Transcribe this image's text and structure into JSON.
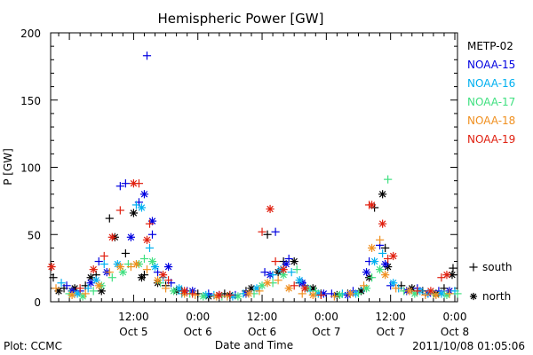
{
  "chart_data": {
    "type": "scatter",
    "title": "Hemispheric Power [GW]",
    "xlabel": "Date and Time",
    "ylabel": "P [GW]",
    "ylim": [
      0,
      200
    ],
    "xlim": [
      "2011-10-04T20:30",
      "2011-10-08T00:30"
    ],
    "yticks": [
      0,
      50,
      100,
      150,
      200
    ],
    "xticks": [
      {
        "time": "2011-10-05T12:00",
        "line1": "12:00",
        "line2": "Oct 5"
      },
      {
        "time": "2011-10-06T00:00",
        "line1": "0:00",
        "line2": "Oct 6"
      },
      {
        "time": "2011-10-06T12:00",
        "line1": "12:00",
        "line2": "Oct 6"
      },
      {
        "time": "2011-10-07T00:00",
        "line1": "0:00",
        "line2": "Oct 7"
      },
      {
        "time": "2011-10-07T12:00",
        "line1": "12:00",
        "line2": "Oct 7"
      },
      {
        "time": "2011-10-08T00:00",
        "line1": "0:00",
        "line2": "Oct 8"
      }
    ],
    "markers": {
      "south": {
        "symbol": "+",
        "label": "south"
      },
      "north": {
        "symbol": "*",
        "label": "north"
      }
    },
    "series": [
      {
        "name": "METP-02",
        "color": "#000000",
        "south": [
          [
            "2011-10-04T21:00",
            18
          ],
          [
            "2011-10-04T23:00",
            10
          ],
          [
            "2011-10-05T03:00",
            12
          ],
          [
            "2011-10-05T05:00",
            20
          ],
          [
            "2011-10-05T07:30",
            62
          ],
          [
            "2011-10-05T10:30",
            36
          ],
          [
            "2011-10-05T14:00",
            20
          ],
          [
            "2011-10-05T18:00",
            12
          ],
          [
            "2011-10-05T21:00",
            8
          ],
          [
            "2011-10-06T00:00",
            6
          ],
          [
            "2011-10-06T05:00",
            6
          ],
          [
            "2011-10-06T09:00",
            8
          ],
          [
            "2011-10-06T13:00",
            50
          ],
          [
            "2011-10-06T16:00",
            30
          ],
          [
            "2011-10-06T19:00",
            14
          ],
          [
            "2011-10-06T23:00",
            6
          ],
          [
            "2011-10-07T04:00",
            6
          ],
          [
            "2011-10-07T09:00",
            70
          ],
          [
            "2011-10-07T11:00",
            40
          ],
          [
            "2011-10-07T14:00",
            12
          ],
          [
            "2011-10-07T18:00",
            8
          ],
          [
            "2011-10-07T22:00",
            10
          ],
          [
            "2011-10-07T23:40",
            25
          ]
        ],
        "north": [
          [
            "2011-10-04T22:00",
            8
          ],
          [
            "2011-10-05T01:00",
            10
          ],
          [
            "2011-10-05T04:00",
            18
          ],
          [
            "2011-10-05T06:00",
            8
          ],
          [
            "2011-10-05T08:30",
            48
          ],
          [
            "2011-10-05T12:00",
            66
          ],
          [
            "2011-10-05T13:30",
            18
          ],
          [
            "2011-10-05T16:30",
            14
          ],
          [
            "2011-10-05T20:00",
            8
          ],
          [
            "2011-10-06T02:00",
            4
          ],
          [
            "2011-10-06T06:00",
            5
          ],
          [
            "2011-10-06T10:00",
            10
          ],
          [
            "2011-10-06T15:00",
            22
          ],
          [
            "2011-10-06T18:00",
            30
          ],
          [
            "2011-10-06T21:30",
            10
          ],
          [
            "2011-10-07T02:00",
            5
          ],
          [
            "2011-10-07T06:30",
            8
          ],
          [
            "2011-10-07T08:00",
            18
          ],
          [
            "2011-10-07T10:30",
            80
          ],
          [
            "2011-10-07T11:30",
            26
          ],
          [
            "2011-10-07T16:00",
            10
          ],
          [
            "2011-10-07T20:30",
            6
          ],
          [
            "2011-10-07T23:30",
            20
          ]
        ]
      },
      {
        "name": "NOAA-15",
        "color": "#0000e0",
        "south": [
          [
            "2011-10-04T23:30",
            12
          ],
          [
            "2011-10-05T02:00",
            8
          ],
          [
            "2011-10-05T05:30",
            30
          ],
          [
            "2011-10-05T09:30",
            86
          ],
          [
            "2011-10-05T10:30",
            88
          ],
          [
            "2011-10-05T13:00",
            74
          ],
          [
            "2011-10-05T14:30",
            183
          ],
          [
            "2011-10-05T15:30",
            50
          ],
          [
            "2011-10-05T16:30",
            22
          ],
          [
            "2011-10-05T19:00",
            14
          ],
          [
            "2011-10-05T22:00",
            8
          ],
          [
            "2011-10-06T02:00",
            6
          ],
          [
            "2011-10-06T07:00",
            5
          ],
          [
            "2011-10-06T12:30",
            22
          ],
          [
            "2011-10-06T14:30",
            52
          ],
          [
            "2011-10-06T17:00",
            32
          ],
          [
            "2011-10-06T20:00",
            12
          ],
          [
            "2011-10-07T01:00",
            6
          ],
          [
            "2011-10-07T05:00",
            8
          ],
          [
            "2011-10-07T08:00",
            30
          ],
          [
            "2011-10-07T10:00",
            42
          ],
          [
            "2011-10-07T12:00",
            12
          ],
          [
            "2011-10-07T17:00",
            10
          ],
          [
            "2011-10-07T21:00",
            8
          ]
        ],
        "north": [
          [
            "2011-10-05T00:30",
            8
          ],
          [
            "2011-10-05T04:00",
            14
          ],
          [
            "2011-10-05T07:00",
            22
          ],
          [
            "2011-10-05T11:30",
            48
          ],
          [
            "2011-10-05T14:00",
            80
          ],
          [
            "2011-10-05T15:30",
            60
          ],
          [
            "2011-10-05T18:30",
            26
          ],
          [
            "2011-10-05T23:00",
            8
          ],
          [
            "2011-10-06T04:00",
            5
          ],
          [
            "2011-10-06T09:00",
            6
          ],
          [
            "2011-10-06T13:30",
            20
          ],
          [
            "2011-10-06T16:30",
            28
          ],
          [
            "2011-10-06T19:30",
            14
          ],
          [
            "2011-10-06T23:30",
            6
          ],
          [
            "2011-10-07T04:00",
            5
          ],
          [
            "2011-10-07T07:30",
            22
          ],
          [
            "2011-10-07T11:00",
            28
          ],
          [
            "2011-10-07T15:00",
            8
          ],
          [
            "2011-10-07T19:00",
            6
          ],
          [
            "2011-10-07T23:00",
            8
          ]
        ]
      },
      {
        "name": "NOAA-16",
        "color": "#00b0f0",
        "south": [
          [
            "2011-10-04T22:30",
            14
          ],
          [
            "2011-10-05T03:30",
            10
          ],
          [
            "2011-10-05T06:30",
            28
          ],
          [
            "2011-10-05T12:30",
            72
          ],
          [
            "2011-10-05T15:00",
            40
          ],
          [
            "2011-10-05T17:30",
            18
          ],
          [
            "2011-10-05T21:00",
            6
          ],
          [
            "2011-10-06T03:00",
            5
          ],
          [
            "2011-10-06T08:30",
            6
          ],
          [
            "2011-10-06T14:00",
            20
          ],
          [
            "2011-10-06T17:30",
            22
          ],
          [
            "2011-10-06T21:00",
            8
          ],
          [
            "2011-10-07T03:00",
            6
          ],
          [
            "2011-10-07T07:00",
            10
          ],
          [
            "2011-10-07T10:30",
            36
          ],
          [
            "2011-10-07T13:30",
            10
          ],
          [
            "2011-10-07T19:00",
            6
          ],
          [
            "2011-10-08T00:00",
            8
          ]
        ],
        "north": [
          [
            "2011-10-05T01:30",
            6
          ],
          [
            "2011-10-05T05:00",
            16
          ],
          [
            "2011-10-05T09:00",
            28
          ],
          [
            "2011-10-05T13:30",
            70
          ],
          [
            "2011-10-05T16:00",
            26
          ],
          [
            "2011-10-05T20:30",
            10
          ],
          [
            "2011-10-06T01:30",
            5
          ],
          [
            "2011-10-06T06:30",
            4
          ],
          [
            "2011-10-06T11:00",
            10
          ],
          [
            "2011-10-06T15:30",
            24
          ],
          [
            "2011-10-06T19:00",
            16
          ],
          [
            "2011-10-06T22:30",
            6
          ],
          [
            "2011-10-07T05:30",
            6
          ],
          [
            "2011-10-07T09:00",
            30
          ],
          [
            "2011-10-07T12:30",
            14
          ],
          [
            "2011-10-07T17:30",
            8
          ],
          [
            "2011-10-07T21:30",
            6
          ]
        ]
      },
      {
        "name": "NOAA-17",
        "color": "#40e080",
        "south": [
          [
            "2011-10-05T00:00",
            6
          ],
          [
            "2011-10-05T04:30",
            8
          ],
          [
            "2011-10-05T08:00",
            18
          ],
          [
            "2011-10-05T11:00",
            28
          ],
          [
            "2011-10-05T14:00",
            32
          ],
          [
            "2011-10-05T17:00",
            14
          ],
          [
            "2011-10-05T22:30",
            6
          ],
          [
            "2011-10-06T04:30",
            4
          ],
          [
            "2011-10-06T10:30",
            6
          ],
          [
            "2011-10-06T14:00",
            14
          ],
          [
            "2011-10-06T18:30",
            24
          ],
          [
            "2011-10-06T22:00",
            8
          ],
          [
            "2011-10-07T06:00",
            6
          ],
          [
            "2011-10-07T08:30",
            18
          ],
          [
            "2011-10-07T11:30",
            91
          ],
          [
            "2011-10-07T14:30",
            8
          ],
          [
            "2011-10-07T20:00",
            6
          ],
          [
            "2011-10-08T00:30",
            6
          ]
        ],
        "north": [
          [
            "2011-10-05T02:30",
            4
          ],
          [
            "2011-10-05T06:00",
            12
          ],
          [
            "2011-10-05T10:00",
            22
          ],
          [
            "2011-10-05T13:00",
            28
          ],
          [
            "2011-10-05T15:30",
            30
          ],
          [
            "2011-10-05T19:30",
            8
          ],
          [
            "2011-10-06T01:00",
            4
          ],
          [
            "2011-10-06T07:30",
            4
          ],
          [
            "2011-10-06T12:00",
            12
          ],
          [
            "2011-10-06T16:00",
            20
          ],
          [
            "2011-10-06T20:30",
            10
          ],
          [
            "2011-10-07T02:30",
            5
          ],
          [
            "2011-10-07T07:30",
            10
          ],
          [
            "2011-10-07T10:00",
            24
          ],
          [
            "2011-10-07T16:30",
            6
          ],
          [
            "2011-10-07T22:30",
            5
          ]
        ]
      },
      {
        "name": "NOAA-18",
        "color": "#f09020",
        "south": [
          [
            "2011-10-04T21:30",
            10
          ],
          [
            "2011-10-05T03:00",
            6
          ],
          [
            "2011-10-05T07:30",
            22
          ],
          [
            "2011-10-05T11:30",
            26
          ],
          [
            "2011-10-05T14:30",
            24
          ],
          [
            "2011-10-05T18:00",
            10
          ],
          [
            "2011-10-05T23:30",
            5
          ],
          [
            "2011-10-06T05:30",
            4
          ],
          [
            "2011-10-06T11:30",
            8
          ],
          [
            "2011-10-06T15:00",
            16
          ],
          [
            "2011-10-06T19:30",
            6
          ],
          [
            "2011-10-07T01:30",
            4
          ],
          [
            "2011-10-07T07:00",
            12
          ],
          [
            "2011-10-07T10:00",
            46
          ],
          [
            "2011-10-07T13:00",
            10
          ],
          [
            "2011-10-07T18:30",
            5
          ],
          [
            "2011-10-07T23:00",
            6
          ]
        ],
        "north": [
          [
            "2011-10-05T00:30",
            5
          ],
          [
            "2011-10-05T05:30",
            12
          ],
          [
            "2011-10-05T09:30",
            26
          ],
          [
            "2011-10-05T12:30",
            28
          ],
          [
            "2011-10-05T16:30",
            16
          ],
          [
            "2011-10-05T21:30",
            6
          ],
          [
            "2011-10-06T03:30",
            4
          ],
          [
            "2011-10-06T09:30",
            6
          ],
          [
            "2011-10-06T13:00",
            14
          ],
          [
            "2011-10-06T17:00",
            10
          ],
          [
            "2011-10-06T21:30",
            5
          ],
          [
            "2011-10-07T04:30",
            6
          ],
          [
            "2011-10-07T08:30",
            40
          ],
          [
            "2011-10-07T11:00",
            20
          ],
          [
            "2011-10-07T15:30",
            8
          ],
          [
            "2011-10-07T20:30",
            5
          ]
        ]
      },
      {
        "name": "NOAA-19",
        "color": "#e02010",
        "south": [
          [
            "2011-10-05T02:00",
            10
          ],
          [
            "2011-10-05T06:30",
            34
          ],
          [
            "2011-10-05T09:30",
            68
          ],
          [
            "2011-10-05T13:00",
            88
          ],
          [
            "2011-10-05T15:00",
            58
          ],
          [
            "2011-10-05T18:30",
            16
          ],
          [
            "2011-10-05T23:00",
            6
          ],
          [
            "2011-10-06T06:00",
            5
          ],
          [
            "2011-10-06T12:00",
            52
          ],
          [
            "2011-10-06T14:30",
            30
          ],
          [
            "2011-10-06T18:00",
            12
          ],
          [
            "2011-10-06T23:00",
            5
          ],
          [
            "2011-10-07T08:00",
            72
          ],
          [
            "2011-10-07T11:30",
            32
          ],
          [
            "2011-10-07T17:00",
            8
          ],
          [
            "2011-10-07T21:30",
            18
          ]
        ],
        "north": [
          [
            "2011-10-04T20:40",
            26
          ],
          [
            "2011-10-05T04:30",
            24
          ],
          [
            "2011-10-05T08:00",
            48
          ],
          [
            "2011-10-05T12:00",
            88
          ],
          [
            "2011-10-05T14:30",
            46
          ],
          [
            "2011-10-05T17:30",
            20
          ],
          [
            "2011-10-05T21:30",
            8
          ],
          [
            "2011-10-06T04:00",
            5
          ],
          [
            "2011-10-06T13:30",
            69
          ],
          [
            "2011-10-06T16:00",
            24
          ],
          [
            "2011-10-06T20:00",
            10
          ],
          [
            "2011-10-07T08:30",
            72
          ],
          [
            "2011-10-07T10:30",
            58
          ],
          [
            "2011-10-07T12:30",
            34
          ],
          [
            "2011-10-07T19:30",
            8
          ],
          [
            "2011-10-07T22:30",
            20
          ]
        ]
      }
    ]
  },
  "footer": {
    "source": "Plot: CCMC",
    "timestamp": "2011/10/08 01:05:06"
  }
}
